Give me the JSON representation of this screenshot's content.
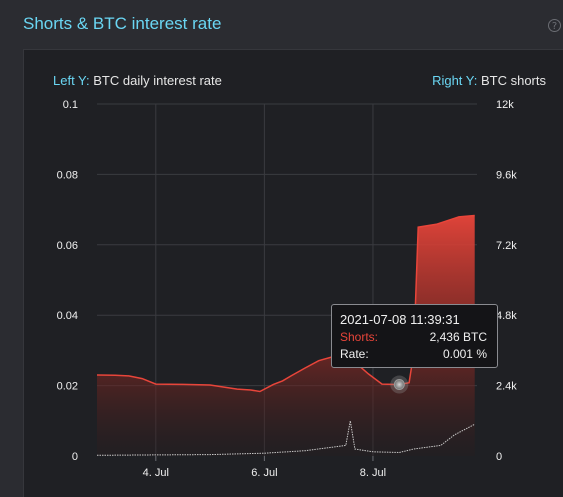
{
  "panel": {
    "title": "Shorts & BTC interest rate",
    "help_icon": "question-circle-icon"
  },
  "captions": {
    "left_prefix": "Left Y:",
    "left_text": "BTC daily interest rate",
    "right_prefix": "Right Y:",
    "right_text": "BTC shorts"
  },
  "colors": {
    "accent": "#6ad6f3",
    "shorts": "#e8453a",
    "rate": "#c8c8c8",
    "grid": "#3a3b40"
  },
  "tooltip": {
    "time": "2021-07-08 11:39:31",
    "shorts_label": "Shorts:",
    "shorts_value": "2,436 BTC",
    "rate_label": "Rate:",
    "rate_value": "0.001 %"
  },
  "chart_data": {
    "type": "area",
    "x_ticks": [
      "4. Jul",
      "6. Jul",
      "8. Jul"
    ],
    "left_axis": {
      "label": "BTC daily interest rate",
      "ylim": [
        0,
        0.1
      ],
      "ticks": [
        "0",
        "0.02",
        "0.04",
        "0.06",
        "0.08",
        "0.1"
      ]
    },
    "right_axis": {
      "label": "BTC shorts",
      "ylim": [
        0,
        12000
      ],
      "ticks": [
        "0",
        "2.4k",
        "4.8k",
        "7.2k",
        "9.6k",
        "12k"
      ]
    },
    "x_range": [
      "2021-07-02T22:00",
      "2021-07-09T22:00"
    ],
    "series": [
      {
        "name": "Shorts",
        "axis": "right",
        "unit": "BTC",
        "points": [
          [
            "2021-07-02T22:00",
            2760
          ],
          [
            "2021-07-03T06:00",
            2750
          ],
          [
            "2021-07-03T12:00",
            2730
          ],
          [
            "2021-07-03T18:00",
            2640
          ],
          [
            "2021-07-04T00:00",
            2450
          ],
          [
            "2021-07-04T12:00",
            2440
          ],
          [
            "2021-07-05T00:00",
            2420
          ],
          [
            "2021-07-05T12:00",
            2280
          ],
          [
            "2021-07-05T18:00",
            2250
          ],
          [
            "2021-07-05T22:00",
            2200
          ],
          [
            "2021-07-06T04:00",
            2440
          ],
          [
            "2021-07-06T08:00",
            2560
          ],
          [
            "2021-07-06T12:00",
            2740
          ],
          [
            "2021-07-06T18:00",
            3000
          ],
          [
            "2021-07-07T00:00",
            3250
          ],
          [
            "2021-07-07T06:00",
            3380
          ],
          [
            "2021-07-07T10:00",
            3340
          ],
          [
            "2021-07-07T16:00",
            3200
          ],
          [
            "2021-07-07T22:00",
            2800
          ],
          [
            "2021-07-08T04:00",
            2450
          ],
          [
            "2021-07-08T11:39",
            2436
          ],
          [
            "2021-07-08T16:00",
            2500
          ],
          [
            "2021-07-08T18:00",
            3500
          ],
          [
            "2021-07-08T20:00",
            7800
          ],
          [
            "2021-07-09T04:00",
            7900
          ],
          [
            "2021-07-09T14:00",
            8150
          ],
          [
            "2021-07-09T21:00",
            8200
          ]
        ]
      },
      {
        "name": "Rate",
        "axis": "left",
        "unit": "%",
        "points": [
          [
            "2021-07-02T22:00",
            0.0002
          ],
          [
            "2021-07-04T00:00",
            0.0003
          ],
          [
            "2021-07-05T00:00",
            0.0004
          ],
          [
            "2021-07-06T00:00",
            0.0008
          ],
          [
            "2021-07-06T18:00",
            0.0015
          ],
          [
            "2021-07-07T06:00",
            0.0025
          ],
          [
            "2021-07-07T12:00",
            0.003
          ],
          [
            "2021-07-07T14:00",
            0.01
          ],
          [
            "2021-07-07T16:00",
            0.002
          ],
          [
            "2021-07-08T00:00",
            0.0012
          ],
          [
            "2021-07-08T11:39",
            0.001
          ],
          [
            "2021-07-08T18:00",
            0.002
          ],
          [
            "2021-07-09T06:00",
            0.003
          ],
          [
            "2021-07-09T12:00",
            0.006
          ],
          [
            "2021-07-09T18:00",
            0.008
          ],
          [
            "2021-07-09T21:00",
            0.009
          ]
        ]
      }
    ],
    "hover_point": "2021-07-08T11:39"
  }
}
